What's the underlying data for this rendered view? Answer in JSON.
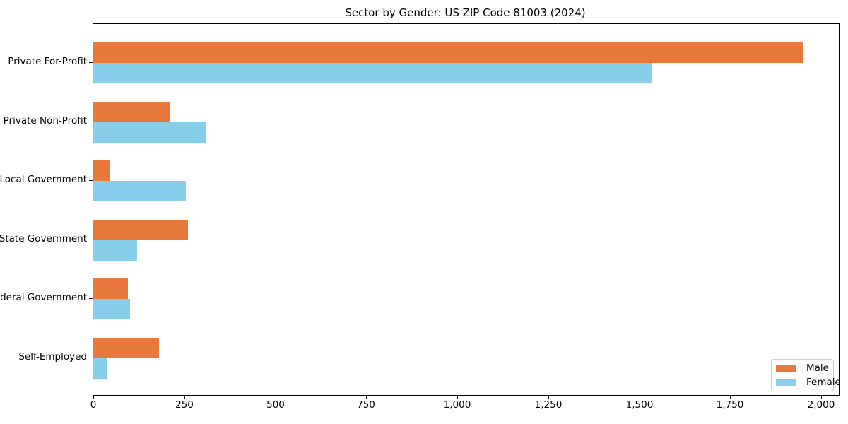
{
  "chart_data": {
    "type": "bar",
    "orientation": "horizontal",
    "title": "Sector by Gender: US ZIP Code 81003 (2024)",
    "categories": [
      "Private For-Profit",
      "Private Non-Profit",
      "Local Government",
      "State Government",
      "Federal Government",
      "Self-Employed"
    ],
    "series": [
      {
        "name": "Male",
        "color": "#e8793d",
        "values": [
          1950,
          210,
          47,
          260,
          95,
          180
        ]
      },
      {
        "name": "Female",
        "color": "#87ceeb",
        "values": [
          1535,
          310,
          255,
          120,
          100,
          37
        ]
      }
    ],
    "xlabel": "",
    "ylabel": "",
    "xlim": [
      0,
      2048
    ],
    "xticks": [
      0,
      250,
      500,
      750,
      1000,
      1250,
      1500,
      1750,
      2000
    ],
    "xtick_labels": [
      "0",
      "250",
      "500",
      "750",
      "1,000",
      "1,250",
      "1,500",
      "1,750",
      "2,000"
    ],
    "grid": false,
    "legend_position": "lower right"
  }
}
